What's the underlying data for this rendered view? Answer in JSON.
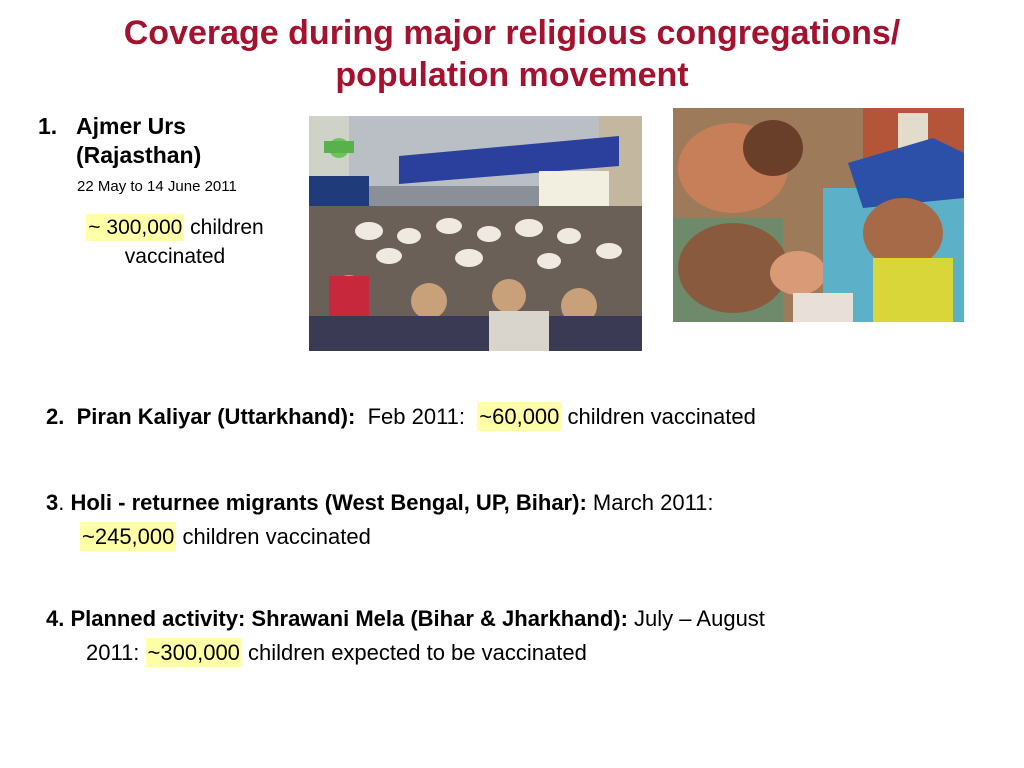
{
  "title_line1": "Coverage during major religious congregations/",
  "title_line2": "population movement",
  "item1": {
    "number": "1.",
    "heading_line1": "Ajmer Urs",
    "heading_line2": "(Rajasthan)",
    "dates": "22 May to 14 June 2011",
    "count": "~ 300,000",
    "suffix_line1": " children",
    "suffix_line2": "vaccinated"
  },
  "item2": {
    "number": "2",
    "heading": "Piran Kaliyar (Uttarkhand):",
    "period": "Feb 2011: ",
    "count": "~60,000",
    "suffix": " children vaccinated"
  },
  "item3": {
    "number": "3",
    "heading": "Holi  - returnee migrants (West Bengal, UP, Bihar):",
    "period": " March 2011:",
    "count": "~245,000",
    "suffix": " children vaccinated"
  },
  "item4": {
    "heading": "4. Planned activity: Shrawani Mela (Bihar & Jharkhand):",
    "period": " July – August",
    "period2": "2011: ",
    "count": "~300,000",
    "suffix": " children expected to be vaccinated"
  },
  "highlight_color": "#ffffa8",
  "title_color": "#a3122e"
}
